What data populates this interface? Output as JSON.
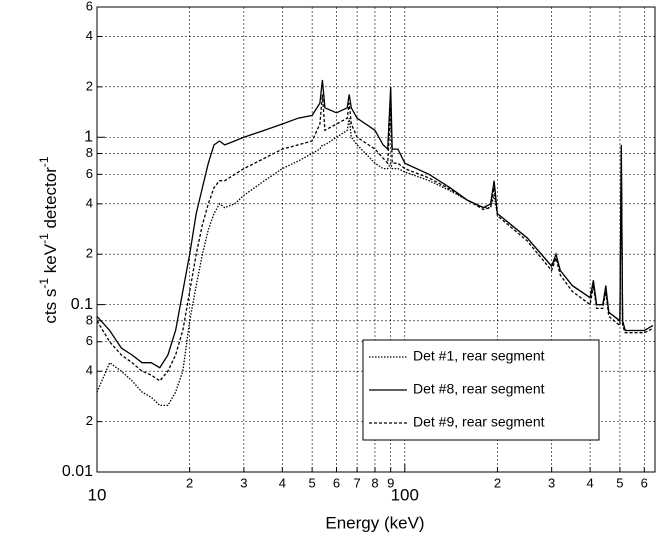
{
  "chart_data": {
    "type": "line",
    "xlabel": "Energy (keV)",
    "ylabel": [
      "cts s",
      "-1",
      " keV",
      "-1",
      " detector",
      "-1"
    ],
    "xlog": true,
    "ylog": true,
    "grid": true,
    "legend": "lower right",
    "xlim": [
      10,
      650
    ],
    "ylim": [
      0.01,
      6
    ],
    "xticks": [
      10,
      {
        "value": 20,
        "label": "2"
      },
      {
        "value": 30,
        "label": "3"
      },
      {
        "value": 40,
        "label": "4"
      },
      {
        "value": 50,
        "label": "5"
      },
      {
        "value": 60,
        "label": "6"
      },
      {
        "value": 70,
        "label": "7"
      },
      {
        "value": 80,
        "label": "8"
      },
      {
        "value": 90,
        "label": "9"
      },
      100,
      {
        "value": 200,
        "label": "2"
      },
      {
        "value": 300,
        "label": "3"
      },
      {
        "value": 400,
        "label": "4"
      },
      {
        "value": 500,
        "label": "5"
      },
      {
        "value": 600,
        "label": "6"
      }
    ],
    "yticks": [
      0.01,
      {
        "value": 0.02,
        "label": "2"
      },
      {
        "value": 0.04,
        "label": "4"
      },
      {
        "value": 0.06,
        "label": "6"
      },
      {
        "value": 0.08,
        "label": "8"
      },
      0.1,
      {
        "value": 0.2,
        "label": "2"
      },
      {
        "value": 0.4,
        "label": "4"
      },
      {
        "value": 0.6,
        "label": "6"
      },
      {
        "value": 0.8,
        "label": "8"
      },
      1,
      {
        "value": 2,
        "label": "2"
      },
      {
        "value": 4,
        "label": "4"
      },
      {
        "value": 6,
        "label": "6"
      }
    ],
    "x": [
      10,
      11,
      12,
      13,
      14,
      15,
      16,
      17,
      18,
      19,
      20,
      21,
      22,
      23,
      24,
      25,
      26,
      28,
      30,
      35,
      40,
      45,
      50,
      53,
      54,
      55,
      60,
      65,
      66,
      67,
      70,
      80,
      85,
      88,
      90,
      91,
      95,
      100,
      120,
      140,
      160,
      180,
      190,
      195,
      200,
      250,
      300,
      310,
      320,
      350,
      400,
      410,
      420,
      440,
      450,
      460,
      500,
      505,
      510,
      520,
      600,
      640
    ],
    "series": [
      {
        "name": "Det #1, rear segment",
        "color": "#000",
        "dash": "1.5 1.5",
        "values": [
          0.03,
          0.045,
          0.04,
          0.035,
          0.03,
          0.028,
          0.025,
          0.025,
          0.03,
          0.04,
          0.08,
          0.13,
          0.2,
          0.28,
          0.35,
          0.4,
          0.38,
          0.4,
          0.45,
          0.55,
          0.65,
          0.72,
          0.8,
          0.85,
          0.9,
          0.9,
          1.0,
          1.1,
          1.3,
          1.0,
          0.9,
          0.7,
          0.65,
          0.65,
          0.7,
          0.65,
          0.65,
          0.62,
          0.55,
          0.48,
          0.42,
          0.38,
          0.38,
          0.45,
          0.35,
          0.25,
          0.17,
          0.19,
          0.16,
          0.13,
          0.11,
          0.13,
          0.1,
          0.1,
          0.12,
          0.09,
          0.08,
          0.7,
          0.08,
          0.07,
          0.07,
          0.075
        ]
      },
      {
        "name": "Det #8, rear segment",
        "color": "#000",
        "dash": "none",
        "values": [
          0.085,
          0.07,
          0.055,
          0.05,
          0.045,
          0.045,
          0.042,
          0.05,
          0.07,
          0.12,
          0.2,
          0.35,
          0.5,
          0.7,
          0.9,
          0.95,
          0.9,
          0.95,
          1.0,
          1.1,
          1.2,
          1.3,
          1.35,
          1.6,
          2.2,
          1.5,
          1.4,
          1.5,
          1.8,
          1.5,
          1.3,
          1.1,
          0.9,
          0.85,
          2.0,
          0.85,
          0.85,
          0.7,
          0.6,
          0.5,
          0.42,
          0.38,
          0.4,
          0.55,
          0.35,
          0.25,
          0.17,
          0.2,
          0.16,
          0.13,
          0.11,
          0.14,
          0.1,
          0.1,
          0.13,
          0.09,
          0.08,
          0.9,
          0.08,
          0.07,
          0.07,
          0.075
        ]
      },
      {
        "name": "Det #9, rear segment",
        "color": "#000",
        "dash": "3 2",
        "values": [
          0.08,
          0.06,
          0.05,
          0.045,
          0.04,
          0.038,
          0.035,
          0.04,
          0.05,
          0.07,
          0.12,
          0.2,
          0.3,
          0.4,
          0.5,
          0.55,
          0.55,
          0.6,
          0.65,
          0.75,
          0.85,
          0.9,
          0.95,
          1.2,
          1.8,
          1.1,
          1.2,
          1.3,
          1.6,
          1.2,
          1.0,
          0.85,
          0.75,
          0.7,
          1.5,
          0.7,
          0.7,
          0.65,
          0.57,
          0.49,
          0.42,
          0.37,
          0.38,
          0.5,
          0.34,
          0.24,
          0.16,
          0.19,
          0.15,
          0.12,
          0.1,
          0.13,
          0.095,
          0.095,
          0.12,
          0.085,
          0.075,
          0.8,
          0.075,
          0.068,
          0.068,
          0.072
        ]
      }
    ]
  }
}
